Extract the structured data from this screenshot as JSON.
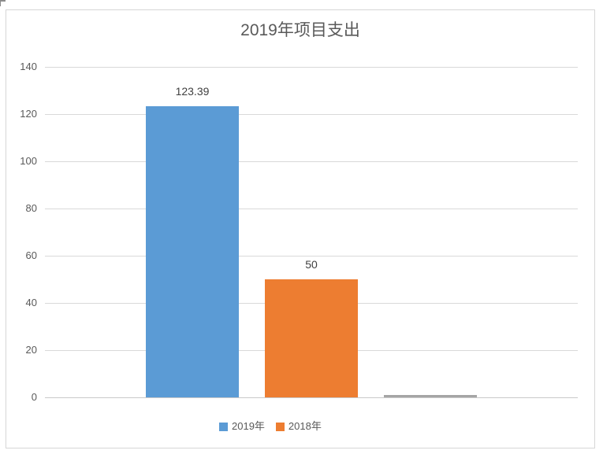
{
  "chart_data": {
    "type": "bar",
    "title": "2019年项目支出",
    "categories": [
      ""
    ],
    "series": [
      {
        "name": "2019年",
        "value": 123.39,
        "label": "123.39",
        "color": "#5B9BD5",
        "in_legend": true
      },
      {
        "name": "2018年",
        "value": 50,
        "label": "50",
        "color": "#ED7D31",
        "in_legend": true
      },
      {
        "name": "",
        "value": 1,
        "label": "",
        "color": "#A5A5A5",
        "in_legend": false
      }
    ],
    "ylim": [
      0,
      140
    ],
    "ytick_step": 20,
    "ytick_labels": [
      "0",
      "20",
      "40",
      "60",
      "80",
      "100",
      "120",
      "140"
    ],
    "grid": true,
    "legend_position": "bottom",
    "legend": [
      "2019年",
      "2018年"
    ],
    "legend_colors": [
      "#5B9BD5",
      "#ED7D31"
    ]
  },
  "colors": {
    "gridline": "#D9D9D9",
    "axis_line": "#C9C9C9",
    "axis_text": "#595959",
    "title_text": "#595959",
    "data_label_text": "#404040",
    "chart_border": "#D6D6D6"
  }
}
